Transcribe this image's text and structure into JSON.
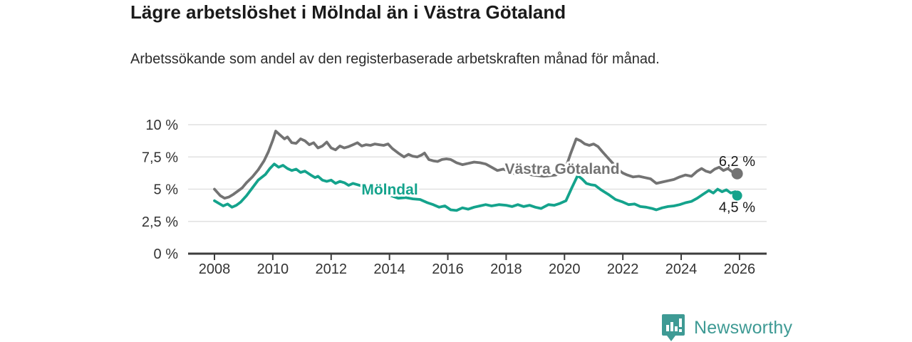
{
  "header": {
    "title": "Lägre arbetslöshet i Mölndal än i Västra Götaland",
    "subtitle": "Arbetssökande som andel av den registerbaserade arbetskraften månad för månad."
  },
  "footer": {
    "brand": "Newsworthy"
  },
  "colors": {
    "molndal": "#14a38c",
    "vastra_gotaland": "#737373",
    "grid": "#e1e1e1",
    "axis": "#3c3c3c",
    "tick_label": "#333333",
    "value_label": "#1a1a1a",
    "brand_teal": "#3e9a94"
  },
  "chart_data": {
    "type": "line",
    "title": "Lägre arbetslöshet i Mölndal än i Västra Götaland",
    "subtitle": "Arbetssökande som andel av den registerbaserade arbetskraften månad för månad.",
    "unit": "%",
    "ylim": [
      0,
      10
    ],
    "xlim": [
      2007.85,
      2026.9
    ],
    "grid": true,
    "y_ticks": [
      {
        "value": 0,
        "label": "0 %"
      },
      {
        "value": 2.5,
        "label": "2,5 %"
      },
      {
        "value": 5,
        "label": "5 %"
      },
      {
        "value": 7.5,
        "label": "7,5 %"
      },
      {
        "value": 10,
        "label": "10 %"
      }
    ],
    "x_ticks": [
      {
        "value": 2008,
        "label": "2008"
      },
      {
        "value": 2010,
        "label": "2010"
      },
      {
        "value": 2012,
        "label": "2012"
      },
      {
        "value": 2014,
        "label": "2014"
      },
      {
        "value": 2016,
        "label": "2016"
      },
      {
        "value": 2018,
        "label": "2018"
      },
      {
        "value": 2020,
        "label": "2020"
      },
      {
        "value": 2022,
        "label": "2022"
      },
      {
        "value": 2024,
        "label": "2024"
      },
      {
        "value": 2026,
        "label": "2026"
      }
    ],
    "series": [
      {
        "name": "Västra Götaland",
        "color_key": "vastra_gotaland",
        "end_label": "6,2 %",
        "end_value": 6.2,
        "points": [
          [
            2008.0,
            5.0
          ],
          [
            2008.2,
            4.5
          ],
          [
            2008.35,
            4.3
          ],
          [
            2008.5,
            4.4
          ],
          [
            2008.65,
            4.6
          ],
          [
            2008.8,
            4.85
          ],
          [
            2008.95,
            5.1
          ],
          [
            2009.1,
            5.5
          ],
          [
            2009.3,
            5.95
          ],
          [
            2009.5,
            6.5
          ],
          [
            2009.7,
            7.2
          ],
          [
            2009.85,
            7.9
          ],
          [
            2010.0,
            8.8
          ],
          [
            2010.1,
            9.5
          ],
          [
            2010.25,
            9.2
          ],
          [
            2010.4,
            8.9
          ],
          [
            2010.5,
            9.05
          ],
          [
            2010.65,
            8.6
          ],
          [
            2010.8,
            8.55
          ],
          [
            2010.95,
            8.9
          ],
          [
            2011.1,
            8.75
          ],
          [
            2011.25,
            8.45
          ],
          [
            2011.4,
            8.6
          ],
          [
            2011.55,
            8.2
          ],
          [
            2011.7,
            8.35
          ],
          [
            2011.85,
            8.65
          ],
          [
            2012.0,
            8.2
          ],
          [
            2012.15,
            8.05
          ],
          [
            2012.3,
            8.35
          ],
          [
            2012.45,
            8.2
          ],
          [
            2012.6,
            8.3
          ],
          [
            2012.75,
            8.45
          ],
          [
            2012.9,
            8.6
          ],
          [
            2013.05,
            8.35
          ],
          [
            2013.2,
            8.45
          ],
          [
            2013.35,
            8.4
          ],
          [
            2013.5,
            8.5
          ],
          [
            2013.65,
            8.45
          ],
          [
            2013.8,
            8.4
          ],
          [
            2013.95,
            8.5
          ],
          [
            2014.1,
            8.15
          ],
          [
            2014.3,
            7.8
          ],
          [
            2014.5,
            7.5
          ],
          [
            2014.65,
            7.7
          ],
          [
            2014.8,
            7.55
          ],
          [
            2014.95,
            7.5
          ],
          [
            2015.1,
            7.65
          ],
          [
            2015.2,
            7.8
          ],
          [
            2015.35,
            7.3
          ],
          [
            2015.5,
            7.2
          ],
          [
            2015.65,
            7.15
          ],
          [
            2015.8,
            7.3
          ],
          [
            2015.95,
            7.35
          ],
          [
            2016.1,
            7.3
          ],
          [
            2016.3,
            7.05
          ],
          [
            2016.5,
            6.9
          ],
          [
            2016.7,
            7.0
          ],
          [
            2016.9,
            7.1
          ],
          [
            2017.1,
            7.05
          ],
          [
            2017.3,
            6.95
          ],
          [
            2017.5,
            6.7
          ],
          [
            2017.7,
            6.45
          ],
          [
            2017.9,
            6.55
          ],
          [
            2018.1,
            6.4
          ],
          [
            2018.3,
            6.2
          ],
          [
            2018.5,
            6.15
          ],
          [
            2018.7,
            6.2
          ],
          [
            2018.9,
            6.1
          ],
          [
            2019.1,
            6.05
          ],
          [
            2019.3,
            6.0
          ],
          [
            2019.5,
            6.05
          ],
          [
            2019.7,
            6.1
          ],
          [
            2019.9,
            6.3
          ],
          [
            2020.05,
            6.7
          ],
          [
            2020.2,
            7.7
          ],
          [
            2020.4,
            8.9
          ],
          [
            2020.55,
            8.75
          ],
          [
            2020.7,
            8.5
          ],
          [
            2020.85,
            8.4
          ],
          [
            2021.0,
            8.5
          ],
          [
            2021.15,
            8.3
          ],
          [
            2021.3,
            7.9
          ],
          [
            2021.5,
            7.4
          ],
          [
            2021.7,
            6.9
          ],
          [
            2021.85,
            6.5
          ],
          [
            2022.0,
            6.25
          ],
          [
            2022.15,
            6.1
          ],
          [
            2022.35,
            5.95
          ],
          [
            2022.55,
            6.0
          ],
          [
            2022.75,
            5.9
          ],
          [
            2022.95,
            5.8
          ],
          [
            2023.15,
            5.45
          ],
          [
            2023.35,
            5.55
          ],
          [
            2023.55,
            5.65
          ],
          [
            2023.75,
            5.75
          ],
          [
            2023.95,
            5.95
          ],
          [
            2024.15,
            6.1
          ],
          [
            2024.35,
            6.0
          ],
          [
            2024.55,
            6.4
          ],
          [
            2024.7,
            6.6
          ],
          [
            2024.85,
            6.4
          ],
          [
            2025.0,
            6.3
          ],
          [
            2025.15,
            6.55
          ],
          [
            2025.3,
            6.7
          ],
          [
            2025.45,
            6.45
          ],
          [
            2025.6,
            6.6
          ],
          [
            2025.75,
            6.35
          ],
          [
            2025.92,
            6.2
          ]
        ]
      },
      {
        "name": "Mölndal",
        "color_key": "molndal",
        "end_label": "4,5 %",
        "end_value": 4.5,
        "points": [
          [
            2008.0,
            4.1
          ],
          [
            2008.15,
            3.9
          ],
          [
            2008.3,
            3.7
          ],
          [
            2008.45,
            3.85
          ],
          [
            2008.6,
            3.6
          ],
          [
            2008.75,
            3.75
          ],
          [
            2008.9,
            4.0
          ],
          [
            2009.1,
            4.5
          ],
          [
            2009.3,
            5.1
          ],
          [
            2009.5,
            5.7
          ],
          [
            2009.75,
            6.15
          ],
          [
            2009.9,
            6.6
          ],
          [
            2010.05,
            6.95
          ],
          [
            2010.2,
            6.7
          ],
          [
            2010.35,
            6.85
          ],
          [
            2010.5,
            6.6
          ],
          [
            2010.65,
            6.45
          ],
          [
            2010.8,
            6.55
          ],
          [
            2010.95,
            6.3
          ],
          [
            2011.1,
            6.4
          ],
          [
            2011.3,
            6.1
          ],
          [
            2011.45,
            5.9
          ],
          [
            2011.55,
            6.0
          ],
          [
            2011.7,
            5.7
          ],
          [
            2011.85,
            5.6
          ],
          [
            2012.0,
            5.7
          ],
          [
            2012.15,
            5.45
          ],
          [
            2012.3,
            5.6
          ],
          [
            2012.45,
            5.5
          ],
          [
            2012.6,
            5.3
          ],
          [
            2012.75,
            5.45
          ],
          [
            2012.9,
            5.35
          ],
          [
            2013.05,
            5.25
          ],
          [
            2013.3,
            5.1
          ],
          [
            2013.55,
            4.9
          ],
          [
            2013.8,
            4.7
          ],
          [
            2014.05,
            4.5
          ],
          [
            2014.3,
            4.3
          ],
          [
            2014.55,
            4.35
          ],
          [
            2014.8,
            4.25
          ],
          [
            2015.05,
            4.2
          ],
          [
            2015.3,
            3.95
          ],
          [
            2015.5,
            3.8
          ],
          [
            2015.7,
            3.6
          ],
          [
            2015.9,
            3.7
          ],
          [
            2016.1,
            3.4
          ],
          [
            2016.3,
            3.35
          ],
          [
            2016.5,
            3.55
          ],
          [
            2016.7,
            3.45
          ],
          [
            2016.9,
            3.6
          ],
          [
            2017.1,
            3.7
          ],
          [
            2017.3,
            3.8
          ],
          [
            2017.5,
            3.7
          ],
          [
            2017.75,
            3.8
          ],
          [
            2018.0,
            3.75
          ],
          [
            2018.2,
            3.65
          ],
          [
            2018.4,
            3.8
          ],
          [
            2018.6,
            3.65
          ],
          [
            2018.8,
            3.75
          ],
          [
            2019.0,
            3.6
          ],
          [
            2019.2,
            3.5
          ],
          [
            2019.45,
            3.8
          ],
          [
            2019.65,
            3.75
          ],
          [
            2019.85,
            3.9
          ],
          [
            2020.05,
            4.1
          ],
          [
            2020.25,
            5.1
          ],
          [
            2020.45,
            6.05
          ],
          [
            2020.6,
            5.8
          ],
          [
            2020.75,
            5.45
          ],
          [
            2020.9,
            5.35
          ],
          [
            2021.05,
            5.3
          ],
          [
            2021.25,
            4.95
          ],
          [
            2021.5,
            4.6
          ],
          [
            2021.75,
            4.2
          ],
          [
            2022.0,
            4.0
          ],
          [
            2022.2,
            3.8
          ],
          [
            2022.4,
            3.85
          ],
          [
            2022.6,
            3.65
          ],
          [
            2022.8,
            3.6
          ],
          [
            2023.0,
            3.5
          ],
          [
            2023.15,
            3.4
          ],
          [
            2023.35,
            3.55
          ],
          [
            2023.55,
            3.65
          ],
          [
            2023.75,
            3.7
          ],
          [
            2023.95,
            3.8
          ],
          [
            2024.15,
            3.95
          ],
          [
            2024.35,
            4.05
          ],
          [
            2024.55,
            4.3
          ],
          [
            2024.75,
            4.6
          ],
          [
            2024.95,
            4.9
          ],
          [
            2025.1,
            4.7
          ],
          [
            2025.25,
            5.0
          ],
          [
            2025.4,
            4.8
          ],
          [
            2025.55,
            4.95
          ],
          [
            2025.7,
            4.7
          ],
          [
            2025.85,
            4.8
          ],
          [
            2025.92,
            4.5
          ]
        ]
      }
    ],
    "legend_position": "inline-labels"
  }
}
